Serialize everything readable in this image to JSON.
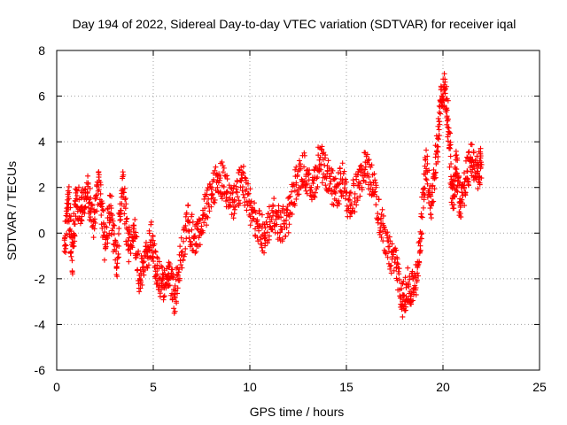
{
  "chart_data": {
    "type": "scatter",
    "title": "Day 194 of 2022, Sidereal Day-to-day VTEC variation (SDTVAR) for receiver iqal",
    "xlabel": "GPS time / hours",
    "ylabel": "SDTVAR / TECUs",
    "xlim": [
      0,
      25
    ],
    "ylim": [
      -6,
      8
    ],
    "xticks": [
      0,
      5,
      10,
      15,
      20,
      25
    ],
    "yticks": [
      -6,
      -4,
      -2,
      0,
      2,
      4,
      6,
      8
    ],
    "grid": true,
    "marker": "+",
    "series_color": "#ff0000",
    "series": [
      {
        "name": "SDTVAR",
        "trend": [
          [
            0.4,
            -0.8
          ],
          [
            0.6,
            1.6
          ],
          [
            0.8,
            -1.2
          ],
          [
            1.0,
            1.5
          ],
          [
            1.3,
            1.0
          ],
          [
            1.6,
            1.8
          ],
          [
            1.9,
            0.5
          ],
          [
            2.2,
            2.3
          ],
          [
            2.5,
            -0.5
          ],
          [
            2.8,
            1.2
          ],
          [
            3.1,
            -1.5
          ],
          [
            3.4,
            2.4
          ],
          [
            3.7,
            -0.5
          ],
          [
            4.0,
            0.2
          ],
          [
            4.3,
            -2.0
          ],
          [
            4.6,
            -1.0
          ],
          [
            4.9,
            -0.3
          ],
          [
            5.2,
            -1.8
          ],
          [
            5.5,
            -2.3
          ],
          [
            5.8,
            -1.5
          ],
          [
            6.1,
            -2.8
          ],
          [
            6.4,
            -1.2
          ],
          [
            6.8,
            0.5
          ],
          [
            7.2,
            -0.5
          ],
          [
            7.6,
            0.8
          ],
          [
            8.0,
            1.5
          ],
          [
            8.4,
            2.6
          ],
          [
            8.8,
            1.8
          ],
          [
            9.2,
            1.4
          ],
          [
            9.6,
            2.4
          ],
          [
            10.0,
            1.2
          ],
          [
            10.4,
            0.4
          ],
          [
            10.8,
            -0.2
          ],
          [
            11.2,
            0.9
          ],
          [
            11.6,
            0.3
          ],
          [
            12.0,
            0.8
          ],
          [
            12.4,
            2.2
          ],
          [
            12.8,
            2.9
          ],
          [
            13.2,
            1.6
          ],
          [
            13.6,
            3.2
          ],
          [
            14.0,
            2.6
          ],
          [
            14.4,
            1.8
          ],
          [
            14.8,
            2.3
          ],
          [
            15.2,
            1.2
          ],
          [
            15.6,
            2.1
          ],
          [
            16.0,
            2.9
          ],
          [
            16.4,
            2.2
          ],
          [
            16.8,
            0.4
          ],
          [
            17.2,
            -0.8
          ],
          [
            17.6,
            -1.5
          ],
          [
            17.9,
            -3.0
          ],
          [
            18.2,
            -2.2
          ],
          [
            18.5,
            -2.6
          ],
          [
            18.8,
            -0.8
          ],
          [
            19.1,
            3.2
          ],
          [
            19.4,
            1.2
          ],
          [
            19.7,
            3.8
          ],
          [
            19.9,
            5.8
          ],
          [
            20.1,
            6.3
          ],
          [
            20.3,
            4.6
          ],
          [
            20.5,
            1.5
          ],
          [
            20.7,
            2.8
          ],
          [
            20.9,
            1.2
          ],
          [
            21.2,
            2.4
          ],
          [
            21.5,
            3.2
          ],
          [
            21.8,
            2.7
          ],
          [
            22.0,
            3.0
          ]
        ]
      }
    ]
  }
}
